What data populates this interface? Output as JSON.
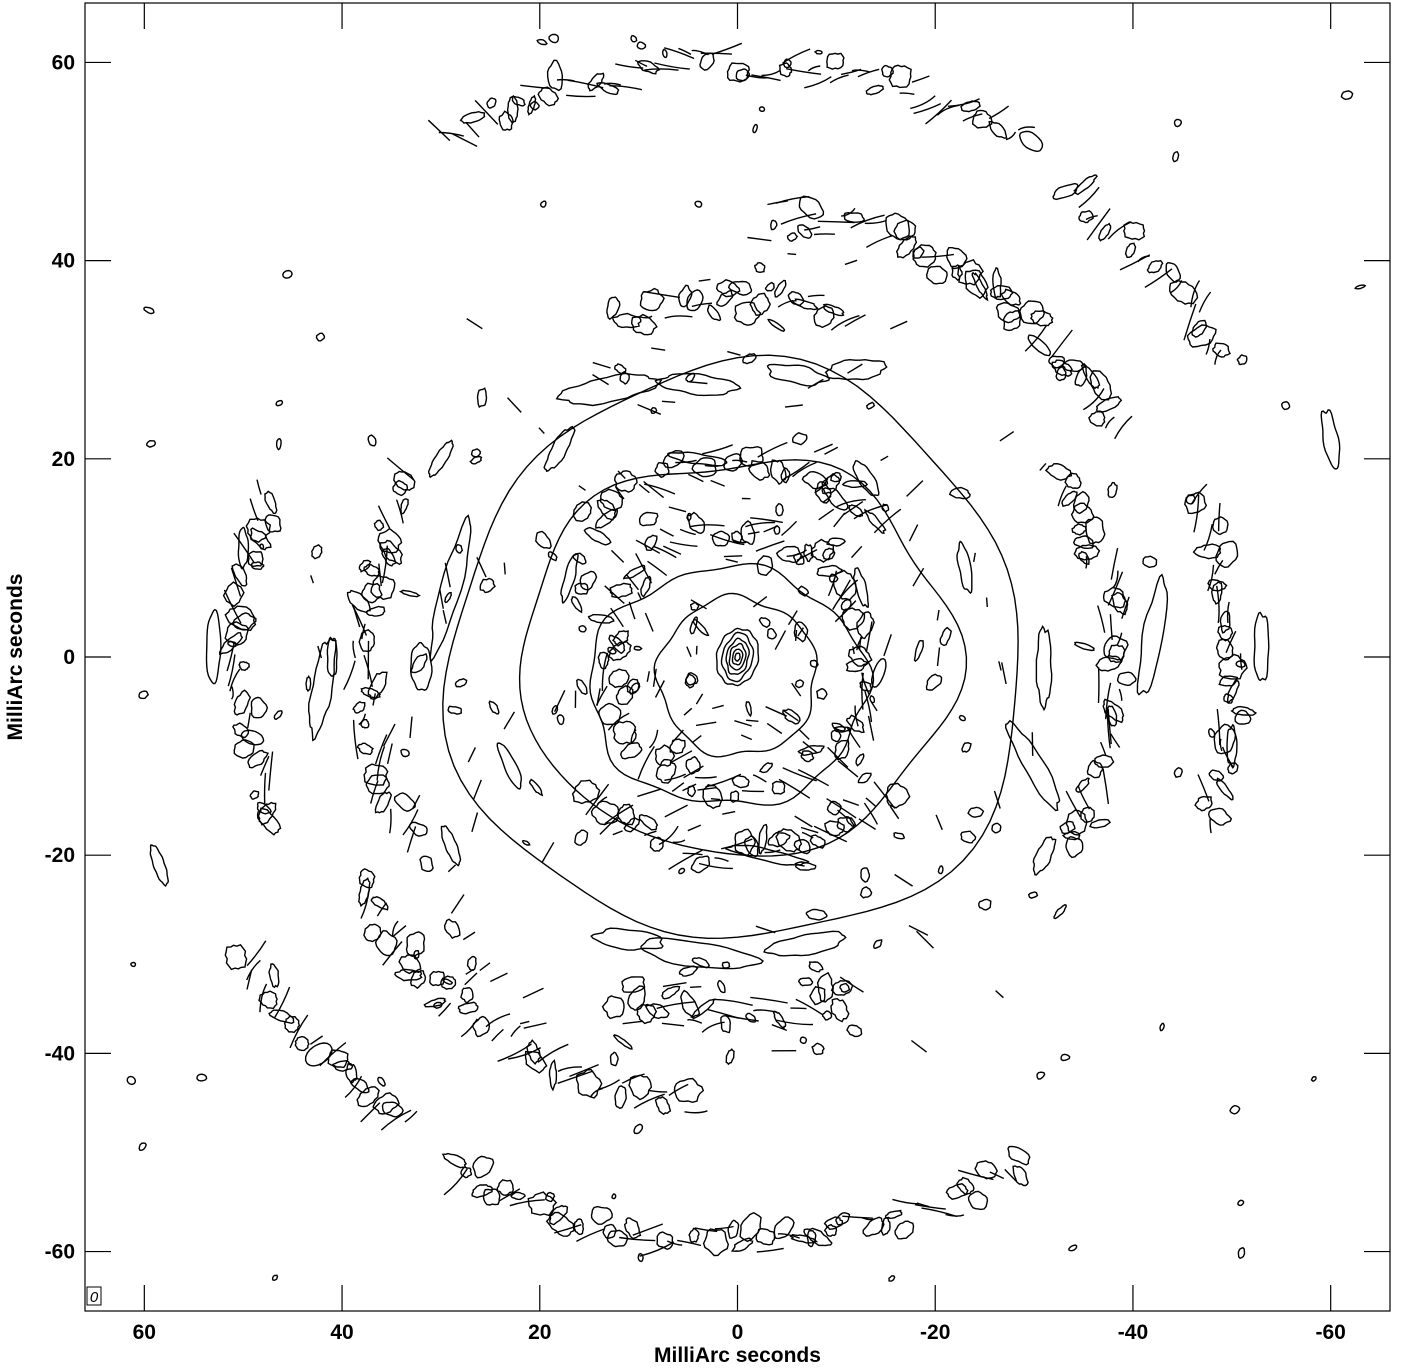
{
  "chart_data": {
    "type": "contour",
    "xlabel": "MilliArc seconds",
    "ylabel": "MilliArc seconds",
    "xlim": [
      66,
      -66
    ],
    "ylim": [
      -66,
      66
    ],
    "x_ticks": [
      60,
      40,
      20,
      0,
      -20,
      -40,
      -60
    ],
    "y_ticks": [
      60,
      40,
      20,
      0,
      -20,
      -40,
      -60
    ],
    "x_tick_labels": [
      "60",
      "40",
      "20",
      "0",
      "-20",
      "-40",
      "-60"
    ],
    "y_tick_labels": [
      "60",
      "40",
      "20",
      "0",
      "-20",
      "-40",
      "-60"
    ],
    "corner_label": "0",
    "grid": false,
    "central_source": {
      "x": 0,
      "y": 0,
      "levels": [
        {
          "rx": 2.0,
          "ry": 3.0
        },
        {
          "rx": 1.5,
          "ry": 2.4
        },
        {
          "rx": 1.1,
          "ry": 1.8
        },
        {
          "rx": 0.8,
          "ry": 1.3
        },
        {
          "rx": 0.5,
          "ry": 0.8
        },
        {
          "rx": 0.25,
          "ry": 0.4
        }
      ]
    },
    "rings": [
      {
        "center": [
          0,
          -2
        ],
        "rx": 8,
        "ry": 8
      },
      {
        "center": [
          1,
          -3
        ],
        "rx": 14,
        "ry": 12
      },
      {
        "center": [
          0,
          0
        ],
        "rx": 22,
        "ry": 20
      },
      {
        "center": [
          0,
          0
        ],
        "rx": 29,
        "ry": 29
      }
    ],
    "blobs": [
      {
        "x": 13,
        "y": 27,
        "w": 10,
        "h": 2.5,
        "angle": -10
      },
      {
        "x": 4,
        "y": 27.5,
        "w": 8,
        "h": 2,
        "angle": 5
      },
      {
        "x": -6,
        "y": 28.5,
        "w": 6,
        "h": 1.8,
        "angle": 10
      },
      {
        "x": -12,
        "y": 29,
        "w": 6,
        "h": 2,
        "angle": -5
      },
      {
        "x": 4,
        "y": -30,
        "w": 12,
        "h": 2.5,
        "angle": 8
      },
      {
        "x": -7,
        "y": -29,
        "w": 8,
        "h": 2,
        "angle": -10
      },
      {
        "x": 11,
        "y": -28.5,
        "w": 7,
        "h": 2,
        "angle": 5
      },
      {
        "x": -3,
        "y": -20,
        "w": 8,
        "h": 1.2,
        "angle": 12
      },
      {
        "x": 4,
        "y": 20,
        "w": 6,
        "h": 1,
        "angle": 8
      },
      {
        "x": 29,
        "y": 7,
        "w": 2,
        "h": 14,
        "angle": 15
      },
      {
        "x": 42,
        "y": -3,
        "w": 2,
        "h": 10,
        "angle": 10
      },
      {
        "x": 32,
        "y": -1,
        "w": 2,
        "h": 5,
        "angle": 0
      },
      {
        "x": -42,
        "y": 2,
        "w": 2,
        "h": 12,
        "angle": 10
      },
      {
        "x": -30,
        "y": -11,
        "w": 2,
        "h": 10,
        "angle": -30
      },
      {
        "x": -31,
        "y": -1,
        "w": 1.5,
        "h": 8,
        "angle": 0
      },
      {
        "x": -60,
        "y": 22,
        "w": 1.5,
        "h": 6,
        "angle": -10
      },
      {
        "x": 53,
        "y": 1,
        "w": 1.5,
        "h": 7,
        "angle": 0
      },
      {
        "x": -53,
        "y": 1,
        "w": 1.5,
        "h": 7,
        "angle": 0
      },
      {
        "x": -23,
        "y": 9,
        "w": 1.2,
        "h": 5,
        "angle": -10
      },
      {
        "x": -13,
        "y": 18,
        "w": 1.5,
        "h": 4,
        "angle": -30
      },
      {
        "x": 18,
        "y": 21,
        "w": 1.5,
        "h": 5,
        "angle": 30
      },
      {
        "x": 30,
        "y": 20,
        "w": 1.2,
        "h": 4,
        "angle": 30
      },
      {
        "x": 50,
        "y": 11,
        "w": 1,
        "h": 4,
        "angle": 0
      },
      {
        "x": 58.5,
        "y": -21,
        "w": 1.2,
        "h": 4,
        "angle": -20
      },
      {
        "x": 23,
        "y": -11,
        "w": 1.2,
        "h": 5,
        "angle": -25
      },
      {
        "x": 29,
        "y": -19,
        "w": 1.2,
        "h": 4,
        "angle": -20
      },
      {
        "x": -31,
        "y": -20,
        "w": 1.5,
        "h": 4,
        "angle": 25
      },
      {
        "x": -50,
        "y": -9,
        "w": 1,
        "h": 4,
        "angle": 0
      },
      {
        "x": 17,
        "y": 8,
        "w": 1,
        "h": 5,
        "angle": 15
      },
      {
        "x": -12.5,
        "y": 7,
        "w": 1,
        "h": 4,
        "angle": -15
      },
      {
        "x": 41,
        "y": 0,
        "w": 1,
        "h": 4,
        "angle": 0
      },
      {
        "x": -8,
        "y": -26,
        "w": 2,
        "h": 1,
        "angle": 0
      }
    ],
    "arc_bands": [
      {
        "radius": 60,
        "start_deg": 60,
        "end_deg": 120
      },
      {
        "radius": 59,
        "start_deg": 240,
        "end_deg": 300
      },
      {
        "radius": 45,
        "start_deg": 95,
        "end_deg": 150
      },
      {
        "radius": 45,
        "start_deg": 275,
        "end_deg": 330
      },
      {
        "radius": 58,
        "start_deg": 125,
        "end_deg": 150
      },
      {
        "radius": 58,
        "start_deg": 305,
        "end_deg": 330
      },
      {
        "radius": 36,
        "start_deg": 70,
        "end_deg": 110
      },
      {
        "radius": 36,
        "start_deg": 250,
        "end_deg": 290
      },
      {
        "radius": 20,
        "start_deg": 40,
        "end_deg": 140
      },
      {
        "radius": 20,
        "start_deg": 220,
        "end_deg": 320
      },
      {
        "radius": 13,
        "start_deg": 0,
        "end_deg": 360
      },
      {
        "radius": 38,
        "start_deg": 150,
        "end_deg": 210
      },
      {
        "radius": 38,
        "start_deg": 330,
        "end_deg": 390
      },
      {
        "radius": 50,
        "start_deg": 160,
        "end_deg": 200
      },
      {
        "radius": 50,
        "start_deg": 340,
        "end_deg": 380
      }
    ]
  }
}
